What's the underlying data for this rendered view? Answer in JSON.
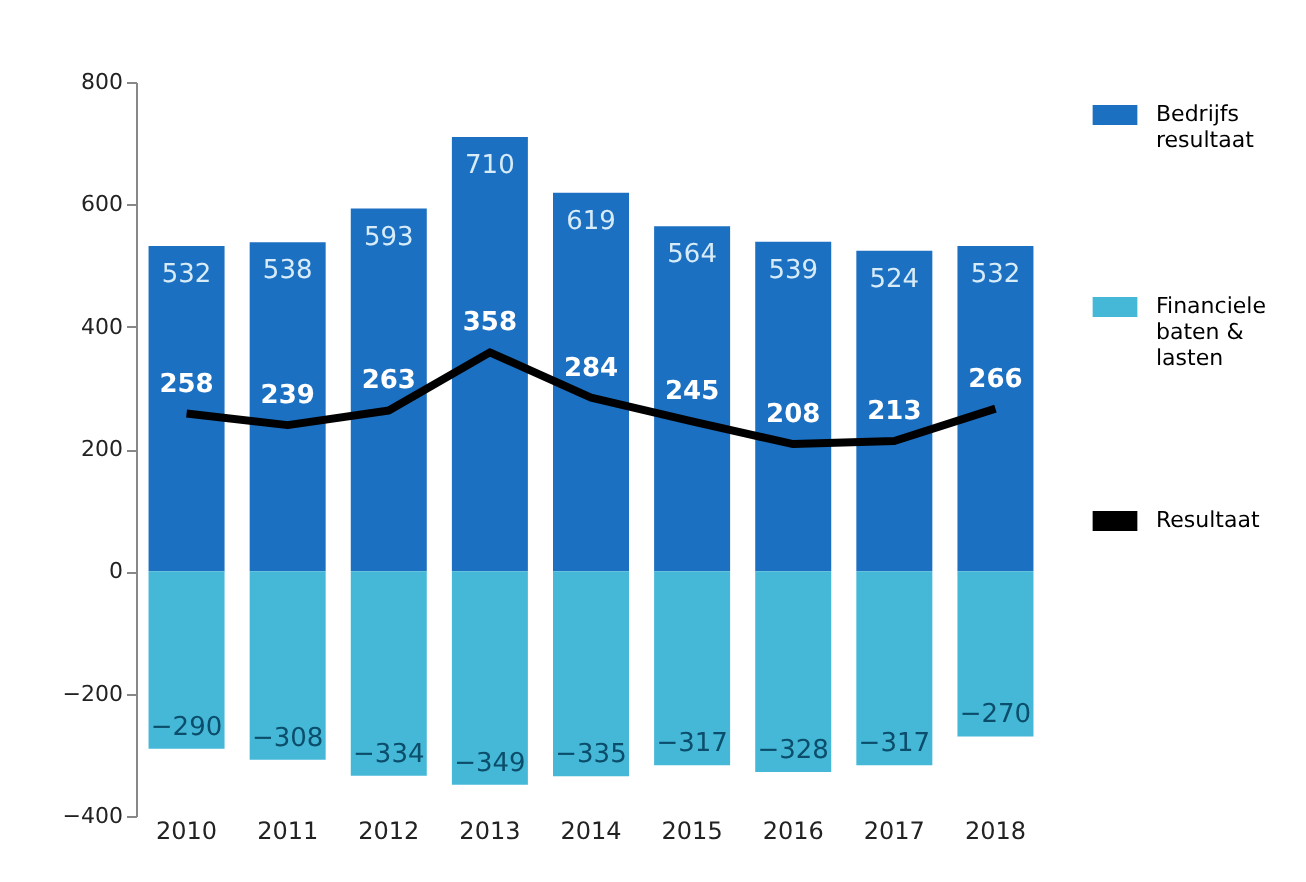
{
  "chart_data": {
    "type": "bar",
    "stacked": true,
    "data_labels": true,
    "legend": "right",
    "grid": false,
    "categories": [
      "2010",
      "2011",
      "2012",
      "2013",
      "2014",
      "2015",
      "2016",
      "2017",
      "2018"
    ],
    "ylim": [
      -400,
      800
    ],
    "yticks": [
      -400,
      -200,
      0,
      200,
      400,
      600,
      800
    ],
    "series": [
      {
        "name": "Bedrijfs resultaat",
        "color": "#1c70c2",
        "values": [
          532,
          538,
          593,
          710,
          619,
          564,
          539,
          524,
          532
        ]
      },
      {
        "name": "Financiele baten & lasten",
        "color": "#45b8d8",
        "values": [
          -290,
          -308,
          -334,
          -349,
          -335,
          -317,
          -328,
          -317,
          -270
        ]
      },
      {
        "name": "Resultaat",
        "type": "line",
        "color": "#000000",
        "values": [
          258,
          239,
          263,
          358,
          284,
          245,
          208,
          213,
          266
        ]
      }
    ]
  }
}
